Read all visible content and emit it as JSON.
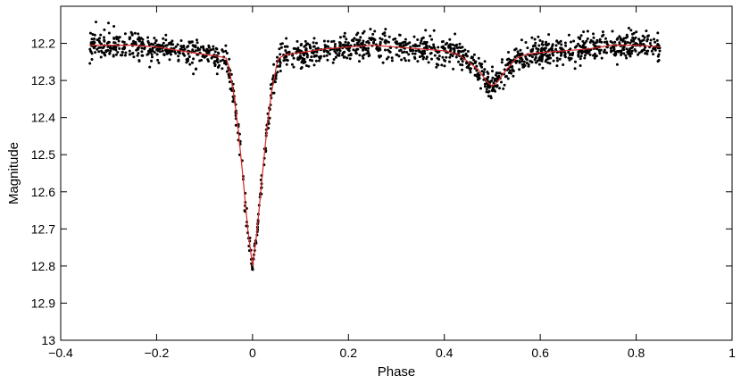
{
  "chart_data": {
    "type": "scatter",
    "xlabel": "Phase",
    "ylabel": "Magnitude",
    "xlim": [
      -0.4,
      1.0
    ],
    "ylim": [
      12.1,
      13.0
    ],
    "y_inverted": true,
    "grid": false,
    "legend": "none",
    "x_ticks": [
      -0.4,
      -0.2,
      0,
      0.2,
      0.4,
      0.6,
      0.8,
      1
    ],
    "x_tick_labels": [
      "−0.4",
      "−0.2",
      "0",
      "0.2",
      "0.4",
      "0.6",
      "0.8",
      "1"
    ],
    "y_ticks": [
      12.2,
      12.3,
      12.4,
      12.5,
      12.6,
      12.7,
      12.8,
      12.9,
      13.0
    ],
    "y_tick_labels": [
      "12.2",
      "12.3",
      "12.4",
      "12.5",
      "12.6",
      "12.7",
      "12.8",
      "12.9",
      "13"
    ],
    "colors": {
      "points": "#000000",
      "model": "#d62728",
      "axes": "#000000"
    },
    "series": [
      {
        "kind": "scatter",
        "x_range": [
          -0.34,
          0.85
        ],
        "n_points": 1600,
        "scatter_sigma": 0.018
      },
      {
        "kind": "line",
        "x": [
          -0.34,
          -0.25,
          -0.2,
          -0.15,
          -0.1,
          -0.07,
          -0.055,
          -0.05,
          -0.04,
          -0.03,
          -0.02,
          -0.01,
          0.0,
          0.01,
          0.02,
          0.03,
          0.04,
          0.05,
          0.055,
          0.07,
          0.1,
          0.15,
          0.2,
          0.25,
          0.3,
          0.35,
          0.4,
          0.43,
          0.45,
          0.47,
          0.49,
          0.5,
          0.51,
          0.53,
          0.55,
          0.57,
          0.6,
          0.65,
          0.7,
          0.75,
          0.8,
          0.85
        ],
        "y": [
          12.205,
          12.205,
          12.21,
          12.22,
          12.23,
          12.235,
          12.24,
          12.26,
          12.33,
          12.43,
          12.56,
          12.7,
          12.8,
          12.7,
          12.56,
          12.43,
          12.33,
          12.26,
          12.24,
          12.23,
          12.225,
          12.215,
          12.21,
          12.205,
          12.21,
          12.215,
          12.22,
          12.23,
          12.25,
          12.27,
          12.305,
          12.315,
          12.305,
          12.27,
          12.24,
          12.23,
          12.225,
          12.22,
          12.215,
          12.205,
          12.205,
          12.21
        ]
      }
    ]
  }
}
